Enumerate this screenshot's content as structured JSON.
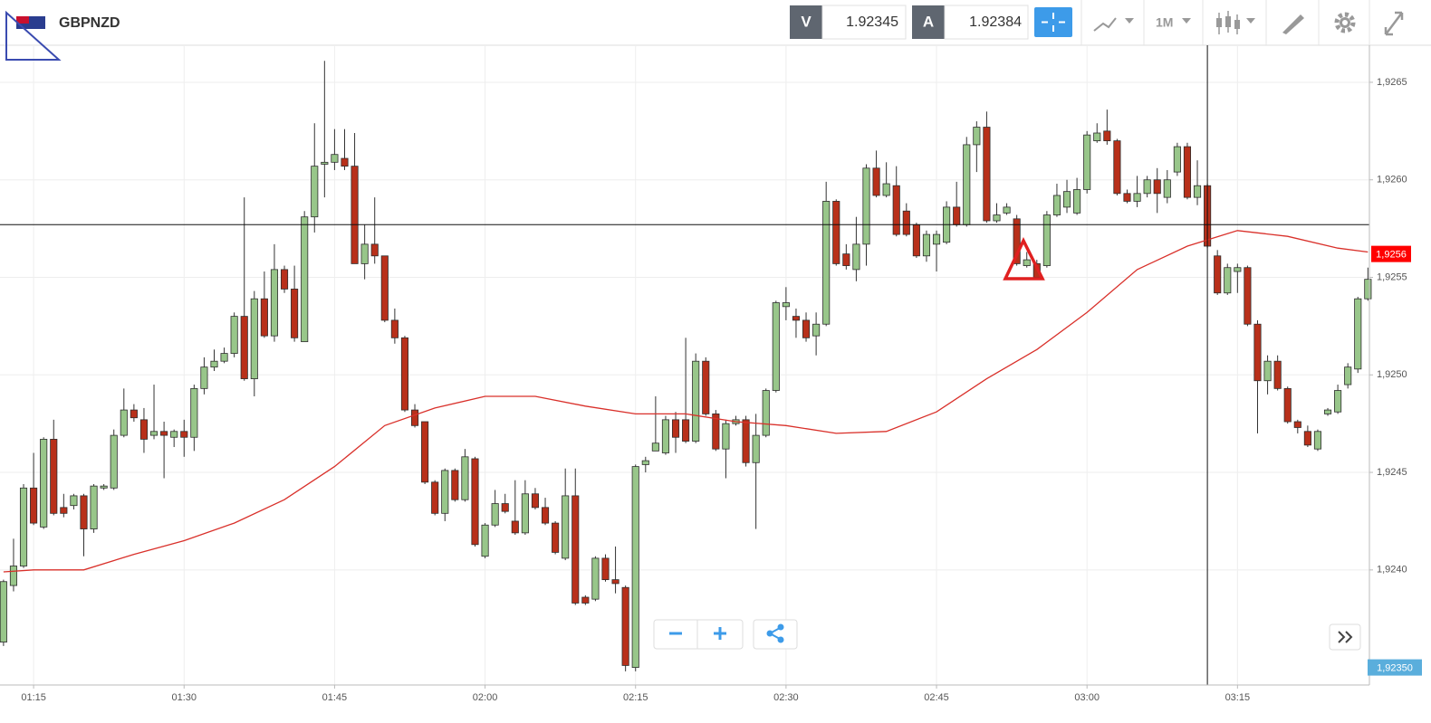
{
  "header": {
    "symbol": "GBPNZD",
    "bid_label": "V",
    "bid": 1.92345,
    "ask_label": "A",
    "ask": 1.92384,
    "timeframe": "1M"
  },
  "chart_data": {
    "type": "candlestick",
    "x": [
      72,
      73,
      74,
      75,
      76,
      77,
      78,
      79,
      80,
      81,
      82,
      83,
      84,
      85,
      86,
      87,
      88,
      89,
      90,
      91,
      92,
      93,
      94,
      95,
      96,
      97,
      98,
      99,
      100,
      101,
      102,
      103,
      104,
      105,
      106,
      107,
      108,
      109,
      110,
      111,
      112,
      113,
      114,
      115,
      116,
      117,
      118,
      119,
      120,
      121,
      122,
      123,
      124,
      125,
      126,
      127,
      128,
      129,
      130,
      131,
      132,
      133,
      134,
      135,
      136,
      137,
      138,
      139,
      140,
      141,
      142,
      143,
      144,
      145,
      146,
      147,
      148,
      149,
      150,
      151,
      152,
      153,
      154,
      155,
      156,
      157,
      158,
      159,
      160,
      161,
      162,
      163,
      164,
      165,
      166,
      167,
      168,
      169,
      170,
      171,
      172,
      173,
      174,
      175,
      176,
      177,
      178,
      179,
      180,
      181,
      182,
      183,
      184,
      185,
      186,
      187,
      188,
      189,
      190,
      191,
      192,
      193,
      194,
      195,
      196,
      197,
      198,
      199,
      200,
      201,
      202,
      203,
      204,
      205,
      206,
      207,
      208
    ],
    "open": [
      1.92363,
      1.92392,
      1.92402,
      1.92442,
      1.92422,
      1.92467,
      1.92432,
      1.92433,
      1.92438,
      1.92421,
      1.92442,
      1.92442,
      1.92469,
      1.92482,
      1.92477,
      1.92469,
      1.92471,
      1.92468,
      1.92471,
      1.92468,
      1.92493,
      1.92504,
      1.92507,
      1.92511,
      1.9253,
      1.92498,
      1.92539,
      1.9252,
      1.92554,
      1.92544,
      1.92517,
      1.92581,
      1.92608,
      1.92609,
      1.92611,
      1.92607,
      1.92557,
      1.92567,
      1.92561,
      1.92528,
      1.92519,
      1.92482,
      1.92476,
      1.92445,
      1.92429,
      1.92451,
      1.92436,
      1.92457,
      1.92407,
      1.92423,
      1.92434,
      1.92425,
      1.92419,
      1.92439,
      1.92432,
      1.92424,
      1.92406,
      1.92438,
      1.92386,
      1.92385,
      1.92406,
      1.92395,
      1.92391,
      1.9235,
      1.92454,
      1.92461,
      1.9246,
      1.92477,
      1.92477,
      1.92466,
      1.92507,
      1.9248,
      1.92462,
      1.92475,
      1.92477,
      1.92455,
      1.92469,
      1.92492,
      1.92535,
      1.9253,
      1.92528,
      1.9252,
      1.92526,
      1.92589,
      1.92562,
      1.92554,
      1.92567,
      1.92606,
      1.92592,
      1.92597,
      1.92584,
      1.92577,
      1.92561,
      1.92567,
      1.92568,
      1.92586,
      1.92577,
      1.92618,
      1.92627,
      1.92579,
      1.92583,
      1.9258,
      1.92556,
      1.92557,
      1.92556,
      1.92582,
      1.92586,
      1.92583,
      1.92595,
      1.9262,
      1.92625,
      1.9262,
      1.92593,
      1.92589,
      1.92593,
      1.926,
      1.92591,
      1.92604,
      1.92617,
      1.92591,
      1.92597,
      1.92561,
      1.92542,
      1.92553,
      1.92555,
      1.92526,
      1.92497,
      1.92507,
      1.92493,
      1.92476,
      1.92471,
      1.92462,
      1.9248,
      1.92481,
      1.92495,
      1.92503,
      1.92539
    ],
    "high": [
      1.92395,
      1.92416,
      1.92444,
      1.9246,
      1.92468,
      1.92477,
      1.92439,
      1.92439,
      1.92439,
      1.92444,
      1.92444,
      1.92472,
      1.92493,
      1.92485,
      1.92483,
      1.92495,
      1.92476,
      1.92472,
      1.92477,
      1.92495,
      1.92509,
      1.92513,
      1.92514,
      1.92532,
      1.92591,
      1.92543,
      1.92553,
      1.92567,
      1.92556,
      1.92556,
      1.92584,
      1.92629,
      1.92661,
      1.92626,
      1.92626,
      1.92624,
      1.92577,
      1.92591,
      1.92561,
      1.92534,
      1.9252,
      1.92485,
      1.92476,
      1.92446,
      1.92452,
      1.92452,
      1.92462,
      1.92458,
      1.92424,
      1.92441,
      1.92439,
      1.92446,
      1.92446,
      1.92442,
      1.92437,
      1.92425,
      1.92452,
      1.92452,
      1.92387,
      1.92407,
      1.92408,
      1.92412,
      1.92392,
      1.92454,
      1.92458,
      1.92489,
      1.92479,
      1.92481,
      1.92519,
      1.92511,
      1.92509,
      1.92482,
      1.92477,
      1.92479,
      1.92479,
      1.9248,
      1.92493,
      1.92538,
      1.92545,
      1.92534,
      1.92532,
      1.92532,
      1.92599,
      1.9259,
      1.92567,
      1.92581,
      1.92608,
      1.92615,
      1.92609,
      1.92607,
      1.92588,
      1.92578,
      1.92574,
      1.92574,
      1.92589,
      1.92599,
      1.92622,
      1.9263,
      1.92635,
      1.92588,
      1.92588,
      1.92582,
      1.92563,
      1.92559,
      1.92584,
      1.92598,
      1.926,
      1.92601,
      1.92625,
      1.92629,
      1.92636,
      1.92621,
      1.92595,
      1.92602,
      1.92602,
      1.92606,
      1.92605,
      1.92619,
      1.92619,
      1.9261,
      1.92598,
      1.92564,
      1.92557,
      1.92557,
      1.92556,
      1.92528,
      1.9251,
      1.9251,
      1.92494,
      1.92477,
      1.92474,
      1.92472,
      1.92483,
      1.92495,
      1.92506,
      1.9254,
      1.92555
    ],
    "low": [
      1.92361,
      1.92389,
      1.92401,
      1.92423,
      1.92421,
      1.92428,
      1.92427,
      1.92431,
      1.92407,
      1.92419,
      1.92441,
      1.92441,
      1.92468,
      1.92476,
      1.9246,
      1.92467,
      1.92447,
      1.92463,
      1.92458,
      1.92461,
      1.9249,
      1.92502,
      1.92506,
      1.92509,
      1.92497,
      1.92489,
      1.92519,
      1.92517,
      1.92542,
      1.92517,
      1.92517,
      1.92573,
      1.92591,
      1.92605,
      1.92605,
      1.92557,
      1.92549,
      1.92557,
      1.92527,
      1.92516,
      1.92481,
      1.92473,
      1.92444,
      1.92428,
      1.92425,
      1.92435,
      1.92435,
      1.92412,
      1.92406,
      1.92422,
      1.92429,
      1.92418,
      1.92418,
      1.92431,
      1.92423,
      1.92408,
      1.92405,
      1.92382,
      1.92382,
      1.92384,
      1.92394,
      1.92388,
      1.92348,
      1.92348,
      1.9245,
      1.92461,
      1.92459,
      1.9246,
      1.92465,
      1.92465,
      1.92479,
      1.92461,
      1.92447,
      1.92474,
      1.92453,
      1.92421,
      1.92468,
      1.92491,
      1.92528,
      1.92519,
      1.92517,
      1.9251,
      1.92525,
      1.92556,
      1.92554,
      1.92548,
      1.92556,
      1.92591,
      1.92591,
      1.92571,
      1.92571,
      1.9256,
      1.92558,
      1.92553,
      1.92567,
      1.92576,
      1.92576,
      1.92604,
      1.92578,
      1.92578,
      1.92582,
      1.92556,
      1.92555,
      1.92549,
      1.92555,
      1.92581,
      1.92583,
      1.92582,
      1.92593,
      1.92619,
      1.92618,
      1.92592,
      1.92588,
      1.92586,
      1.92591,
      1.92583,
      1.92588,
      1.92602,
      1.9259,
      1.92587,
      1.92565,
      1.92541,
      1.92541,
      1.92542,
      1.92525,
      1.9247,
      1.9249,
      1.92492,
      1.92475,
      1.9247,
      1.92463,
      1.92461,
      1.92479,
      1.9248,
      1.92493,
      1.92501,
      1.92538
    ],
    "close": [
      1.92394,
      1.92402,
      1.92442,
      1.92424,
      1.92467,
      1.92429,
      1.92429,
      1.92438,
      1.92421,
      1.92443,
      1.92443,
      1.92469,
      1.92482,
      1.92478,
      1.92467,
      1.92471,
      1.92469,
      1.92471,
      1.92468,
      1.92493,
      1.92504,
      1.92507,
      1.92511,
      1.9253,
      1.92498,
      1.92539,
      1.9252,
      1.92554,
      1.92544,
      1.92519,
      1.92581,
      1.92607,
      1.92609,
      1.92613,
      1.92607,
      1.92557,
      1.92567,
      1.92561,
      1.92528,
      1.92519,
      1.92482,
      1.92474,
      1.92445,
      1.92429,
      1.92451,
      1.92436,
      1.92458,
      1.92413,
      1.92423,
      1.92434,
      1.9243,
      1.92419,
      1.92439,
      1.92432,
      1.92424,
      1.92409,
      1.92438,
      1.92383,
      1.92383,
      1.92406,
      1.92395,
      1.92393,
      1.92351,
      1.92453,
      1.92456,
      1.92465,
      1.92477,
      1.92468,
      1.92466,
      1.92507,
      1.9248,
      1.92462,
      1.92475,
      1.92477,
      1.92455,
      1.92469,
      1.92492,
      1.92537,
      1.92537,
      1.92528,
      1.92519,
      1.92526,
      1.92589,
      1.92557,
      1.92556,
      1.92567,
      1.92606,
      1.92592,
      1.92598,
      1.92572,
      1.92572,
      1.92561,
      1.92572,
      1.92572,
      1.92586,
      1.92577,
      1.92618,
      1.92627,
      1.92579,
      1.92582,
      1.92586,
      1.92557,
      1.92559,
      1.9255,
      1.92582,
      1.92592,
      1.92594,
      1.92595,
      1.92623,
      1.92624,
      1.9262,
      1.92593,
      1.92589,
      1.92593,
      1.926,
      1.92593,
      1.926,
      1.92617,
      1.92591,
      1.92597,
      1.92566,
      1.92542,
      1.92555,
      1.92555,
      1.92526,
      1.92497,
      1.92507,
      1.92493,
      1.92476,
      1.92473,
      1.92464,
      1.92471,
      1.92482,
      1.92492,
      1.92504,
      1.92539,
      1.92549
    ],
    "up_color": "#98c68a",
    "down_color": "#b8301a",
    "indicator": {
      "color": "#d9302a",
      "x": [
        72,
        75,
        80,
        85,
        90,
        95,
        100,
        105,
        110,
        115,
        120,
        125,
        130,
        135,
        140,
        145,
        150,
        155,
        160,
        165,
        170,
        175,
        180,
        185,
        190,
        195,
        200,
        205,
        208
      ],
      "values": [
        1.92399,
        1.924,
        1.924,
        1.92408,
        1.92415,
        1.92424,
        1.92436,
        1.92453,
        1.92474,
        1.92483,
        1.92489,
        1.92489,
        1.92484,
        1.9248,
        1.9248,
        1.92476,
        1.92474,
        1.9247,
        1.92471,
        1.92481,
        1.92498,
        1.92513,
        1.92532,
        1.92554,
        1.92566,
        1.92574,
        1.92571,
        1.92565,
        1.92563
      ],
      "last_label": {
        "value": 1.92562,
        "label": "1,9256"
      }
    },
    "crosshair": {
      "x": 192,
      "y": 1.92577
    },
    "cursor_price": {
      "value": 1.9235,
      "label": "1,92350"
    },
    "xlim": [
      71.65,
      208.15
    ],
    "xticks": [
      {
        "value": 75,
        "label": "01:15"
      },
      {
        "value": 90,
        "label": "01:30"
      },
      {
        "value": 105,
        "label": "01:45"
      },
      {
        "value": 120,
        "label": "02:00"
      },
      {
        "value": 135,
        "label": "02:15"
      },
      {
        "value": 150,
        "label": "02:30"
      },
      {
        "value": 165,
        "label": "02:45"
      },
      {
        "value": 180,
        "label": "03:00"
      },
      {
        "value": 195,
        "label": "03:15"
      }
    ],
    "ylim": [
      1.92341,
      1.92669
    ],
    "yticks": [
      {
        "value": 1.924,
        "label": "1,9240"
      },
      {
        "value": 1.9245,
        "label": "1,9245"
      },
      {
        "value": 1.925,
        "label": "1,9250"
      },
      {
        "value": 1.9255,
        "label": "1,9255"
      },
      {
        "value": 1.926,
        "label": "1,9260"
      },
      {
        "value": 1.9265,
        "label": "1,9265"
      }
    ],
    "grid": true
  }
}
